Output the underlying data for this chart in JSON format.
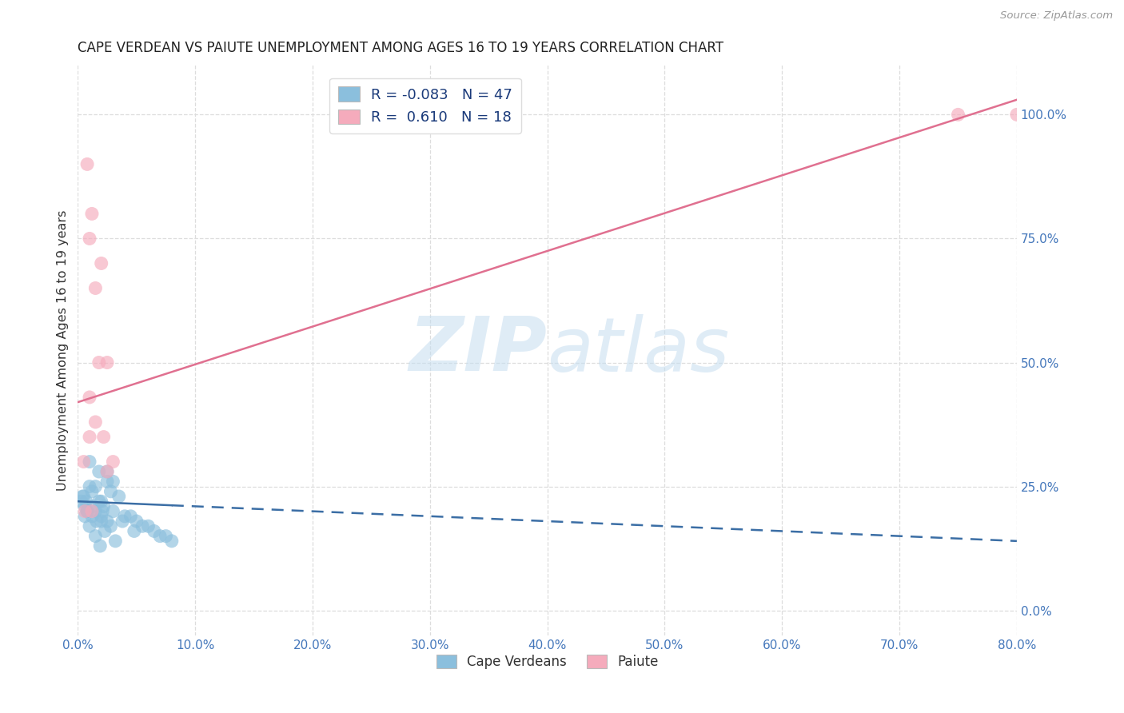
{
  "title": "CAPE VERDEAN VS PAIUTE UNEMPLOYMENT AMONG AGES 16 TO 19 YEARS CORRELATION CHART",
  "source": "Source: ZipAtlas.com",
  "ylabel": "Unemployment Among Ages 16 to 19 years",
  "x_tick_labels": [
    "0.0%",
    "10.0%",
    "20.0%",
    "30.0%",
    "40.0%",
    "50.0%",
    "60.0%",
    "70.0%",
    "80.0%"
  ],
  "x_tick_vals": [
    0,
    10,
    20,
    30,
    40,
    50,
    60,
    70,
    80
  ],
  "y_right_labels": [
    "100.0%",
    "75.0%",
    "50.0%",
    "25.0%",
    "0.0%"
  ],
  "y_right_vals": [
    100,
    75,
    50,
    25,
    0
  ],
  "xlim": [
    0,
    80
  ],
  "ylim": [
    -5,
    110
  ],
  "blue_color": "#8BBFDD",
  "pink_color": "#F5ABBC",
  "blue_line_color": "#3B6EA5",
  "pink_line_color": "#E07090",
  "legend_R_blue": "-0.083",
  "legend_N_blue": "47",
  "legend_R_pink": "0.610",
  "legend_N_pink": "18",
  "legend_label_blue": "Cape Verdeans",
  "legend_label_pink": "Paiute",
  "blue_dots_x": [
    1.5,
    2.5,
    1.0,
    1.8,
    2.0,
    2.2,
    1.2,
    0.5,
    0.8,
    0.3,
    0.6,
    1.0,
    1.5,
    2.0,
    3.0,
    4.0,
    5.0,
    6.0,
    7.0,
    8.0,
    2.5,
    3.5,
    1.8,
    2.8,
    0.7,
    1.3,
    2.1,
    0.4,
    1.6,
    2.3,
    3.2,
    4.5,
    5.5,
    6.5,
    7.5,
    1.0,
    1.5,
    2.0,
    2.5,
    3.0,
    0.8,
    1.2,
    2.8,
    3.8,
    4.8,
    0.6,
    1.9
  ],
  "blue_dots_y": [
    20,
    18,
    25,
    22,
    19,
    21,
    24,
    23,
    20,
    22,
    19,
    17,
    15,
    18,
    20,
    19,
    18,
    17,
    15,
    14,
    26,
    23,
    28,
    24,
    22,
    21,
    20,
    23,
    18,
    16,
    14,
    19,
    17,
    16,
    15,
    30,
    25,
    22,
    28,
    26,
    20,
    19,
    17,
    18,
    16,
    21,
    13
  ],
  "pink_dots_x": [
    1.0,
    1.5,
    2.0,
    2.5,
    1.2,
    1.8,
    2.2,
    0.8,
    3.0,
    0.5,
    1.0,
    1.5,
    75.0,
    80.0,
    1.0,
    2.5,
    0.6,
    1.2
  ],
  "pink_dots_y": [
    75,
    65,
    70,
    50,
    80,
    50,
    35,
    90,
    30,
    30,
    43,
    38,
    100,
    100,
    35,
    28,
    20,
    20
  ],
  "blue_reg_x0": 0,
  "blue_reg_x1": 80,
  "blue_reg_y0": 22,
  "blue_reg_y1": 14,
  "blue_reg_solid_x1": 8,
  "pink_reg_x0": 0,
  "pink_reg_x1": 80,
  "pink_reg_y0": 42,
  "pink_reg_y1": 103,
  "watermark_zip": "ZIP",
  "watermark_atlas": "atlas",
  "background_color": "#FFFFFF",
  "grid_color": "#DDDDDD",
  "title_color": "#222222",
  "tick_label_color": "#4477BB"
}
